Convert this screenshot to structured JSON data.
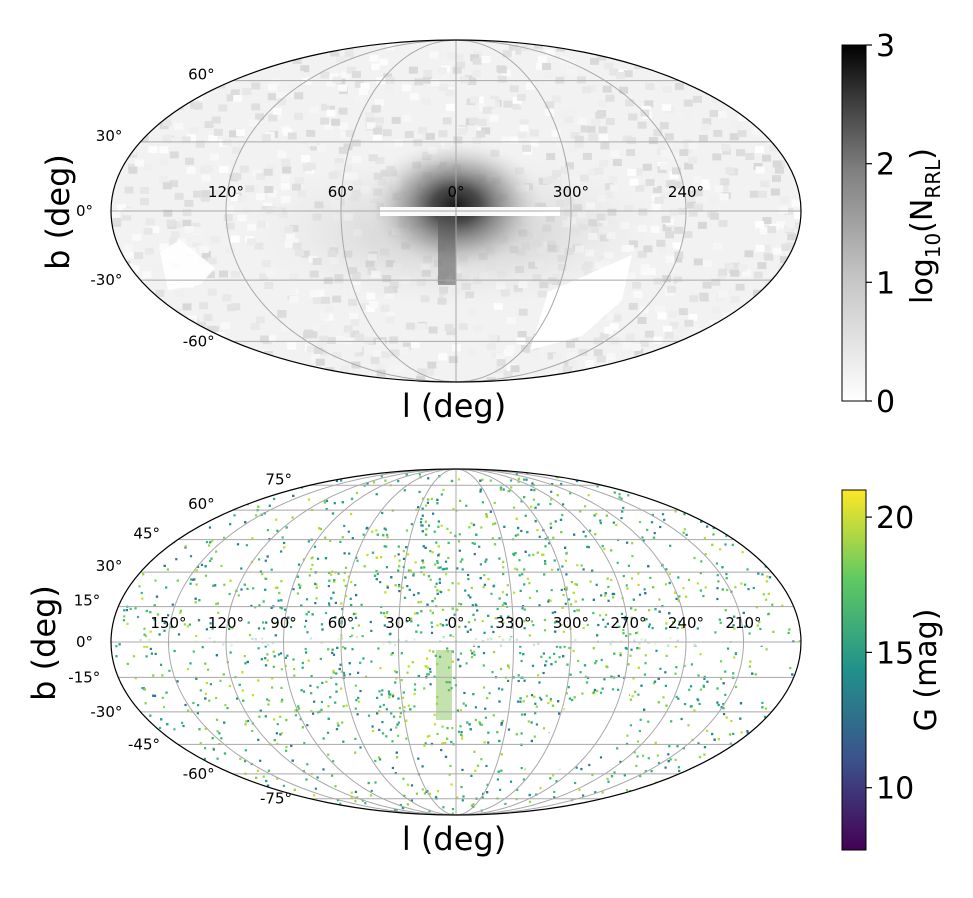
{
  "chart_data": [
    {
      "type": "heatmap",
      "projection": "mollweide",
      "title": "",
      "xlabel": "l (deg)",
      "ylabel": "b (deg)",
      "lon_ticks": [
        "120°",
        "60°",
        "0°",
        "300°",
        "240°"
      ],
      "lon_tick_values": [
        120,
        60,
        0,
        300,
        240
      ],
      "lat_ticks": [
        "60°",
        "30°",
        "0°",
        "-30°",
        "-60°"
      ],
      "lat_tick_values": [
        60,
        30,
        0,
        -30,
        -60
      ],
      "colorbar": {
        "label_main": "log",
        "label_sub": "10",
        "label_open": "(N",
        "label_sub2": "RRL",
        "label_close": ")",
        "range": [
          0,
          3
        ],
        "ticks": [
          "0",
          "1",
          "2",
          "3"
        ],
        "tick_values": [
          0,
          1,
          2,
          3
        ],
        "colormap": "Greys",
        "cmap_stops": [
          "#ffffff",
          "#bdbdbd",
          "#7a7a7a",
          "#2a2a2a",
          "#000000"
        ]
      }
    },
    {
      "type": "scatter",
      "projection": "mollweide",
      "title": "",
      "xlabel": "l (deg)",
      "ylabel": "b (deg)",
      "lon_ticks": [
        "150°",
        "120°",
        "90°",
        "60°",
        "30°",
        "0°",
        "330°",
        "300°",
        "270°",
        "240°",
        "210°"
      ],
      "lon_tick_values": [
        150,
        120,
        90,
        60,
        30,
        0,
        330,
        300,
        270,
        240,
        210
      ],
      "lat_ticks": [
        "75°",
        "60°",
        "45°",
        "30°",
        "15°",
        "0°",
        "-15°",
        "-30°",
        "-45°",
        "-60°",
        "-75°"
      ],
      "lat_tick_values": [
        75,
        60,
        45,
        30,
        15,
        0,
        -15,
        -30,
        -45,
        -60,
        -75
      ],
      "colorbar": {
        "label": "G (mag)",
        "range": [
          7.7,
          21
        ],
        "ticks": [
          "10",
          "15",
          "20"
        ],
        "tick_values": [
          10,
          15,
          20
        ],
        "colormap": "viridis",
        "cmap_stops": [
          "#440154",
          "#3b528b",
          "#21918c",
          "#5ec962",
          "#fde725"
        ]
      }
    }
  ]
}
